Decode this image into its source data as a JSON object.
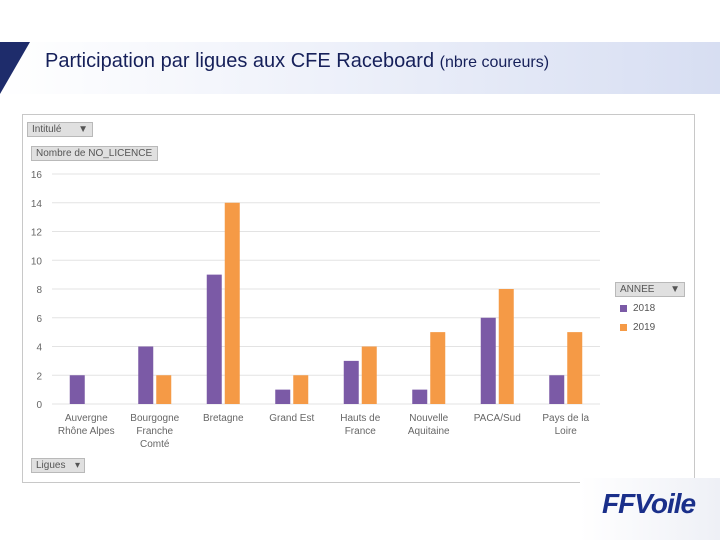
{
  "header": {
    "title_main": "Participation par ligues aux CFE Raceboard",
    "title_sub": "(nbre coureurs)"
  },
  "pivot": {
    "intitule_label": "Intitulé",
    "measure_label": "Nombre de NO_LICENCE",
    "axis_field_label": "Ligues",
    "legend_field_label": "ANNEE",
    "filter_icon": "filter-icon",
    "dropdown_icon": "chevron-down-icon"
  },
  "chart_data": {
    "type": "bar",
    "categories": [
      [
        "Auvergne",
        "Rhône Alpes"
      ],
      [
        "Bourgogne",
        "Franche",
        "Comté"
      ],
      [
        "Bretagne"
      ],
      [
        "Grand Est"
      ],
      [
        "Hauts de",
        "France"
      ],
      [
        "Nouvelle",
        "Aquitaine"
      ],
      [
        "PACA/Sud"
      ],
      [
        "Pays de la",
        "Loire"
      ]
    ],
    "series": [
      {
        "name": "2018",
        "color": "#7b5aa6",
        "values": [
          2,
          4,
          9,
          1,
          3,
          1,
          6,
          2
        ]
      },
      {
        "name": "2019",
        "color": "#f59a46",
        "values": [
          0,
          2,
          14,
          2,
          4,
          5,
          8,
          5
        ]
      }
    ],
    "ylim": [
      0,
      16
    ],
    "yticks": [
      "0",
      "2",
      "4",
      "6",
      "8",
      "10",
      "12",
      "14",
      "16"
    ],
    "grid": true,
    "legend_position": "right"
  },
  "logo": {
    "text_ff": "FF",
    "text_voile": "Voile",
    "colors": {
      "primary": "#1a2f8a",
      "accent": "#d7282f"
    }
  }
}
